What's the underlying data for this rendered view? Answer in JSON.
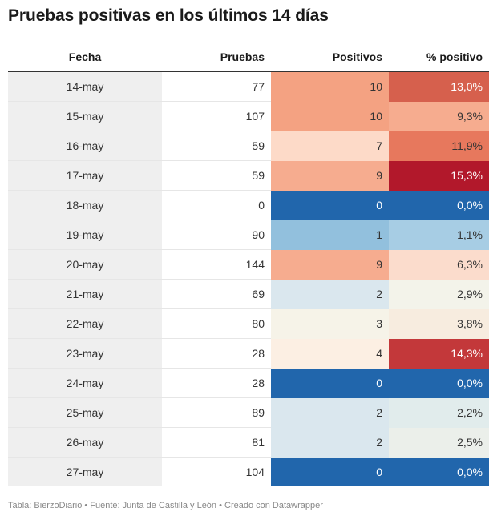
{
  "title": "Pruebas positivas en los últimos 14 días",
  "footer": "Tabla: BierzoDiario • Fuente: Junta de Castilla y León • Creado con Datawrapper",
  "chart_data": {
    "type": "table",
    "columns": [
      "Fecha",
      "Pruebas",
      "Positivos",
      "% positivo"
    ],
    "rows": [
      {
        "fecha": "14-may",
        "pruebas": "77",
        "positivos": "10",
        "pct": "13,0%",
        "pos_color": "#f4a282",
        "pct_color": "#d6604d"
      },
      {
        "fecha": "15-may",
        "pruebas": "107",
        "positivos": "10",
        "pct": "9,3%",
        "pos_color": "#f4a282",
        "pct_color": "#f6ac8f"
      },
      {
        "fecha": "16-may",
        "pruebas": "59",
        "positivos": "7",
        "pct": "11,9%",
        "pos_color": "#fddac8",
        "pct_color": "#e7785d"
      },
      {
        "fecha": "17-may",
        "pruebas": "59",
        "positivos": "9",
        "pct": "15,3%",
        "pos_color": "#f6ac8f",
        "pct_color": "#b2182b"
      },
      {
        "fecha": "18-may",
        "pruebas": "0",
        "positivos": "0",
        "pct": "0,0%",
        "pos_color": "#2166ac",
        "pct_color": "#2166ac"
      },
      {
        "fecha": "19-may",
        "pruebas": "90",
        "positivos": "1",
        "pct": "1,1%",
        "pos_color": "#92c0dd",
        "pct_color": "#a7cde4"
      },
      {
        "fecha": "20-may",
        "pruebas": "144",
        "positivos": "9",
        "pct": "6,3%",
        "pos_color": "#f6ac8f",
        "pct_color": "#fbdccc"
      },
      {
        "fecha": "21-may",
        "pruebas": "69",
        "positivos": "2",
        "pct": "2,9%",
        "pos_color": "#dae7ee",
        "pct_color": "#f3f3ea"
      },
      {
        "fecha": "22-may",
        "pruebas": "80",
        "positivos": "3",
        "pct": "3,8%",
        "pos_color": "#f6f3e8",
        "pct_color": "#f7ecdf"
      },
      {
        "fecha": "23-may",
        "pruebas": "28",
        "positivos": "4",
        "pct": "14,3%",
        "pos_color": "#fcefe3",
        "pct_color": "#c3383a"
      },
      {
        "fecha": "24-may",
        "pruebas": "28",
        "positivos": "0",
        "pct": "0,0%",
        "pos_color": "#2166ac",
        "pct_color": "#2166ac"
      },
      {
        "fecha": "25-may",
        "pruebas": "89",
        "positivos": "2",
        "pct": "2,2%",
        "pos_color": "#dae7ee",
        "pct_color": "#e1ecec"
      },
      {
        "fecha": "26-may",
        "pruebas": "81",
        "positivos": "2",
        "pct": "2,5%",
        "pos_color": "#dae7ee",
        "pct_color": "#ebefea"
      },
      {
        "fecha": "27-may",
        "pruebas": "104",
        "positivos": "0",
        "pct": "0,0%",
        "pos_color": "#2166ac",
        "pct_color": "#2166ac"
      }
    ]
  }
}
